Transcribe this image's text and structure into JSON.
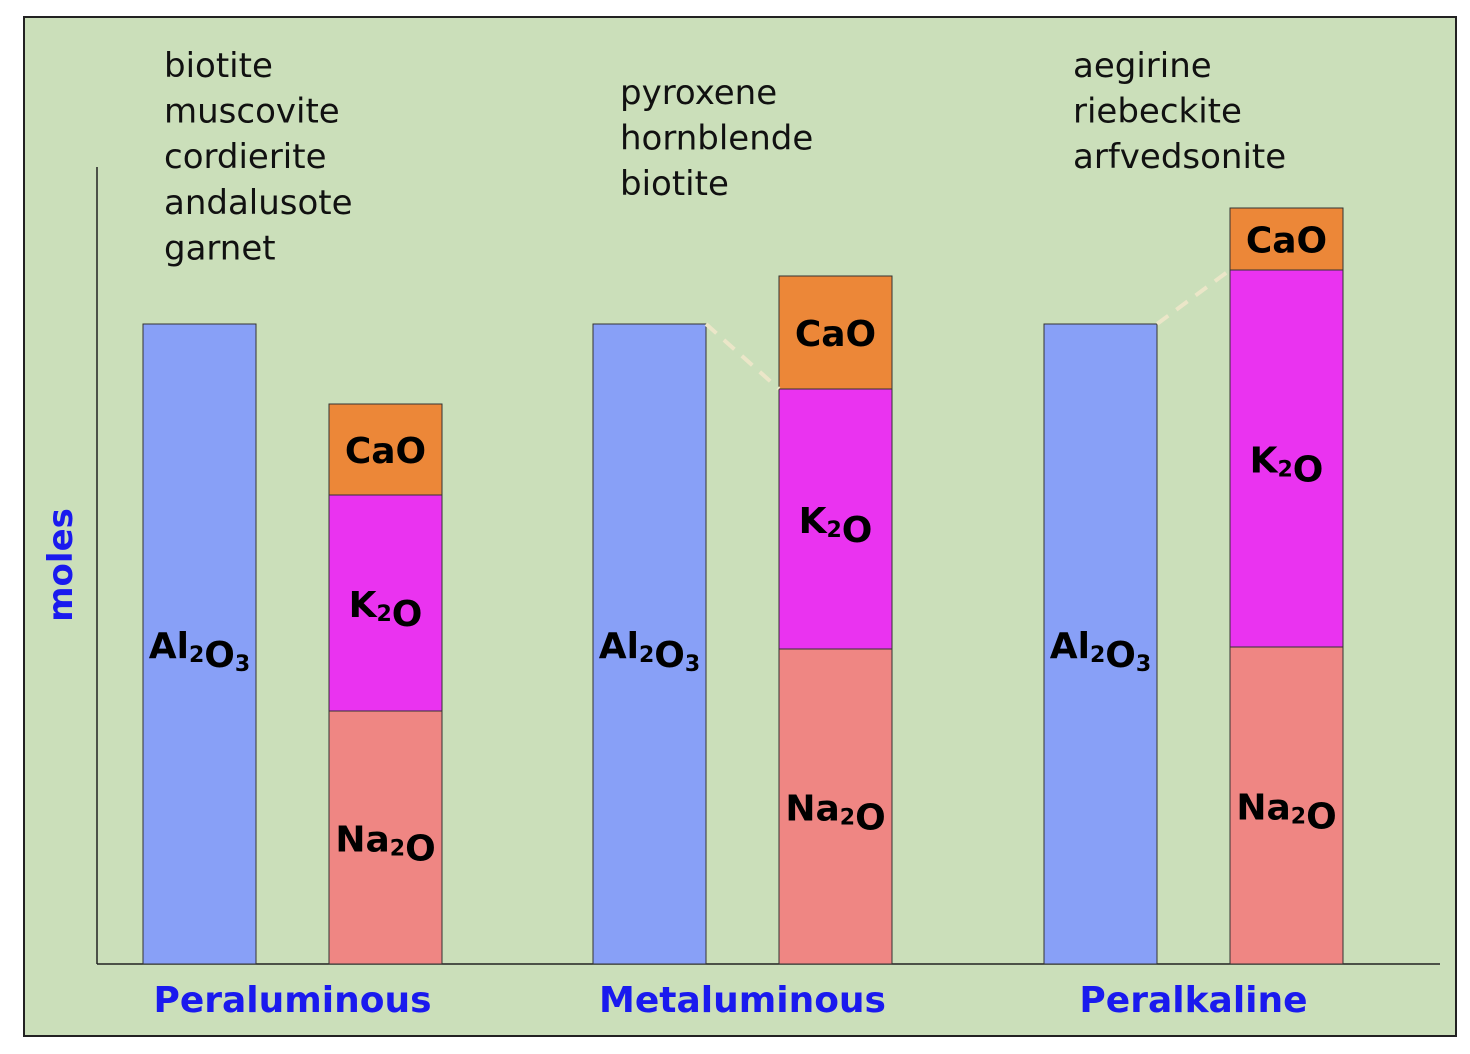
{
  "chart_data": {
    "type": "bar",
    "stacked": true,
    "ylabel": "moles",
    "xlabel": "",
    "grid": false,
    "legend": "none",
    "groups": [
      {
        "name": "Peraluminous",
        "minerals": [
          "biotite",
          "muscovite",
          "cordierite",
          "andalusote",
          "garnet"
        ],
        "bars": [
          {
            "segments": [
              {
                "label": "Al2O3",
                "value": 64
              }
            ]
          },
          {
            "segments": [
              {
                "label": "Na2O",
                "value": 25.3
              },
              {
                "label": "K2O",
                "value": 21.6
              },
              {
                "label": "CaO",
                "value": 9.1
              }
            ]
          }
        ]
      },
      {
        "name": "Metaluminous",
        "minerals": [
          "pyroxene",
          "hornblende",
          "biotite"
        ],
        "bars": [
          {
            "segments": [
              {
                "label": "Al2O3",
                "value": 64
              }
            ]
          },
          {
            "segments": [
              {
                "label": "Na2O",
                "value": 31.5
              },
              {
                "label": "K2O",
                "value": 26
              },
              {
                "label": "CaO",
                "value": 11.3
              }
            ]
          }
        ]
      },
      {
        "name": "Peralkaline",
        "minerals": [
          "aegirine",
          "riebeckite",
          "arfvedsonite"
        ],
        "bars": [
          {
            "segments": [
              {
                "label": "Al2O3",
                "value": 64
              }
            ]
          },
          {
            "segments": [
              {
                "label": "Na2O",
                "value": 31.7
              },
              {
                "label": "K2O",
                "value": 37.7
              },
              {
                "label": "CaO",
                "value": 6.2
              }
            ]
          }
        ]
      }
    ],
    "colors": {
      "Al2O3": "#88a0f7",
      "Na2O": "#ef8683",
      "K2O": "#ea33f0",
      "CaO": "#ec8738",
      "background": "#cbdfba",
      "group_label": "#1a1aee",
      "connector": "#ebe6c8"
    }
  }
}
